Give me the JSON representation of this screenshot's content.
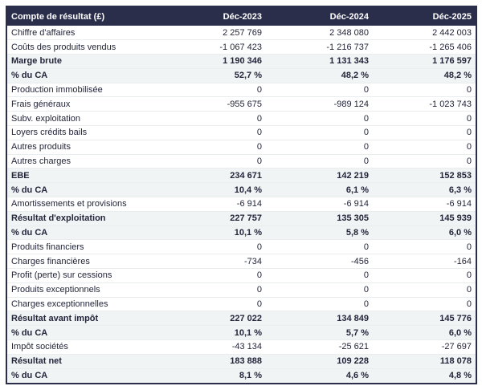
{
  "table": {
    "columns": [
      {
        "label": "Compte de résultat (£)",
        "align": "left"
      },
      {
        "label": "Déc-2023",
        "align": "right"
      },
      {
        "label": "Déc-2024",
        "align": "right"
      },
      {
        "label": "Déc-2025",
        "align": "right"
      }
    ],
    "rows": [
      {
        "label": "Chiffre d'affaires",
        "values": [
          "2 257 769",
          "2 348 080",
          "2 442 003"
        ],
        "style": "normal"
      },
      {
        "label": "Coûts des produits vendus",
        "values": [
          "-1 067 423",
          "-1 216 737",
          "-1 265 406"
        ],
        "style": "normal"
      },
      {
        "label": "Marge brute",
        "values": [
          "1 190 346",
          "1 131 343",
          "1 176 597"
        ],
        "style": "emphasis"
      },
      {
        "label": "% du CA",
        "values": [
          "52,7 %",
          "48,2 %",
          "48,2 %"
        ],
        "style": "emphasis"
      },
      {
        "label": "Production immobilisée",
        "values": [
          "0",
          "0",
          "0"
        ],
        "style": "normal"
      },
      {
        "label": "Frais généraux",
        "values": [
          "-955 675",
          "-989 124",
          "-1 023 743"
        ],
        "style": "normal"
      },
      {
        "label": "Subv. exploitation",
        "values": [
          "0",
          "0",
          "0"
        ],
        "style": "normal"
      },
      {
        "label": "Loyers crédits bails",
        "values": [
          "0",
          "0",
          "0"
        ],
        "style": "normal"
      },
      {
        "label": "Autres produits",
        "values": [
          "0",
          "0",
          "0"
        ],
        "style": "normal"
      },
      {
        "label": "Autres charges",
        "values": [
          "0",
          "0",
          "0"
        ],
        "style": "normal"
      },
      {
        "label": "EBE",
        "values": [
          "234 671",
          "142 219",
          "152 853"
        ],
        "style": "emphasis"
      },
      {
        "label": "% du CA",
        "values": [
          "10,4 %",
          "6,1 %",
          "6,3 %"
        ],
        "style": "emphasis"
      },
      {
        "label": "Amortissements et provisions",
        "values": [
          "-6 914",
          "-6 914",
          "-6 914"
        ],
        "style": "normal"
      },
      {
        "label": "Résultat d'exploitation",
        "values": [
          "227 757",
          "135 305",
          "145 939"
        ],
        "style": "emphasis"
      },
      {
        "label": "% du CA",
        "values": [
          "10,1 %",
          "5,8 %",
          "6,0 %"
        ],
        "style": "emphasis"
      },
      {
        "label": "Produits financiers",
        "values": [
          "0",
          "0",
          "0"
        ],
        "style": "normal"
      },
      {
        "label": "Charges financières",
        "values": [
          "-734",
          "-456",
          "-164"
        ],
        "style": "normal"
      },
      {
        "label": "Profit (perte) sur cessions",
        "values": [
          "0",
          "0",
          "0"
        ],
        "style": "normal"
      },
      {
        "label": "Produits exceptionnels",
        "values": [
          "0",
          "0",
          "0"
        ],
        "style": "normal"
      },
      {
        "label": "Charges exceptionnelles",
        "values": [
          "0",
          "0",
          "0"
        ],
        "style": "normal"
      },
      {
        "label": "Résultat avant impôt",
        "values": [
          "227 022",
          "134 849",
          "145 776"
        ],
        "style": "emphasis"
      },
      {
        "label": "% du CA",
        "values": [
          "10,1 %",
          "5,7 %",
          "6,0 %"
        ],
        "style": "emphasis"
      },
      {
        "label": "Impôt sociétés",
        "values": [
          "-43 134",
          "-25 621",
          "-27 697"
        ],
        "style": "normal"
      },
      {
        "label": "Résultat net",
        "values": [
          "183 888",
          "109 228",
          "118 078"
        ],
        "style": "emphasis"
      },
      {
        "label": "% du CA",
        "values": [
          "8,1 %",
          "4,6 %",
          "4,8 %"
        ],
        "style": "emphasis"
      }
    ],
    "colors": {
      "header_bg": "#2a2e4a",
      "header_text": "#ffffff",
      "emphasis_bg": "#f0f4f5",
      "row_border": "#e9edee",
      "outer_border": "#2a2e4a",
      "text": "#23263a"
    }
  },
  "chart_data": {
    "type": "table",
    "title": "Compte de résultat (£)",
    "columns": [
      "Compte de résultat (£)",
      "Déc-2023",
      "Déc-2024",
      "Déc-2025"
    ],
    "rows": [
      [
        "Chiffre d'affaires",
        "2 257 769",
        "2 348 080",
        "2 442 003"
      ],
      [
        "Coûts des produits vendus",
        "-1 067 423",
        "-1 216 737",
        "-1 265 406"
      ],
      [
        "Marge brute",
        "1 190 346",
        "1 131 343",
        "1 176 597"
      ],
      [
        "% du CA",
        "52,7 %",
        "48,2 %",
        "48,2 %"
      ],
      [
        "Production immobilisée",
        "0",
        "0",
        "0"
      ],
      [
        "Frais généraux",
        "-955 675",
        "-989 124",
        "-1 023 743"
      ],
      [
        "Subv. exploitation",
        "0",
        "0",
        "0"
      ],
      [
        "Loyers crédits bails",
        "0",
        "0",
        "0"
      ],
      [
        "Autres produits",
        "0",
        "0",
        "0"
      ],
      [
        "Autres charges",
        "0",
        "0",
        "0"
      ],
      [
        "EBE",
        "234 671",
        "142 219",
        "152 853"
      ],
      [
        "% du CA",
        "10,4 %",
        "6,1 %",
        "6,3 %"
      ],
      [
        "Amortissements et provisions",
        "-6 914",
        "-6 914",
        "-6 914"
      ],
      [
        "Résultat d'exploitation",
        "227 757",
        "135 305",
        "145 939"
      ],
      [
        "% du CA",
        "10,1 %",
        "5,8 %",
        "6,0 %"
      ],
      [
        "Produits financiers",
        "0",
        "0",
        "0"
      ],
      [
        "Charges financières",
        "-734",
        "-456",
        "-164"
      ],
      [
        "Profit (perte) sur cessions",
        "0",
        "0",
        "0"
      ],
      [
        "Produits exceptionnels",
        "0",
        "0",
        "0"
      ],
      [
        "Charges exceptionnelles",
        "0",
        "0",
        "0"
      ],
      [
        "Résultat avant impôt",
        "227 022",
        "134 849",
        "145 776"
      ],
      [
        "% du CA",
        "10,1 %",
        "5,7 %",
        "6,0 %"
      ],
      [
        "Impôt sociétés",
        "-43 134",
        "-25 621",
        "-27 697"
      ],
      [
        "Résultat net",
        "183 888",
        "109 228",
        "118 078"
      ],
      [
        "% du CA",
        "8,1 %",
        "4,6 %",
        "4,8 %"
      ]
    ]
  }
}
